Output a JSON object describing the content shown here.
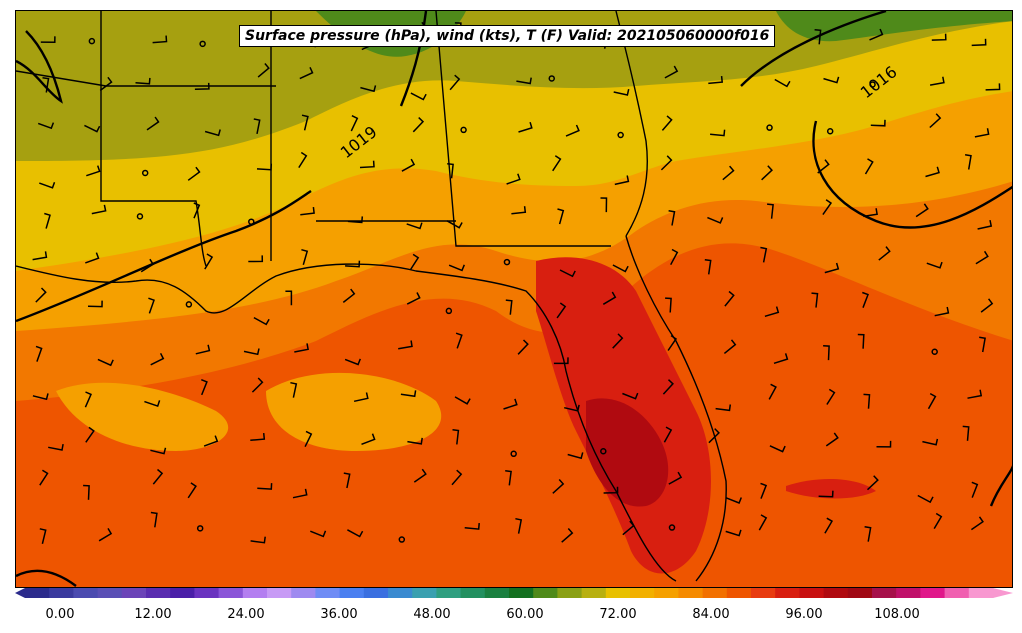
{
  "title": "Surface pressure (hPa), wind (kts), T (F) Valid: 202105060000f016",
  "isobar_labels": [
    "1019",
    "1016"
  ],
  "colorbar": {
    "tick_labels": [
      "0.00",
      "12.00",
      "24.00",
      "36.00",
      "48.00",
      "60.00",
      "72.00",
      "84.00",
      "96.00",
      "108.00"
    ],
    "colors": [
      "#2b2b8c",
      "#3a3a9e",
      "#4b4bb0",
      "#5a4fb5",
      "#6b44b8",
      "#5a2db0",
      "#4a1fa8",
      "#6a33c0",
      "#8a55d8",
      "#b37ef0",
      "#c79af5",
      "#9e8af0",
      "#6f8cf5",
      "#4a7ff0",
      "#3a6fe0",
      "#3a8ad0",
      "#3aa0b0",
      "#2f9f80",
      "#239060",
      "#1a8040",
      "#137020",
      "#4f8a1a",
      "#8aa015",
      "#b8b010",
      "#e8c000",
      "#f2b000",
      "#f5a000",
      "#f58a00",
      "#f27000",
      "#ee5500",
      "#e83c10",
      "#d81f10",
      "#c81010",
      "#b00a10",
      "#a00814",
      "#a6104a",
      "#c0106a",
      "#e0188a",
      "#f060b0",
      "#f898d0"
    ]
  },
  "field_colors": {
    "cold_green": "#4f8a1a",
    "olive": "#a6a010",
    "yellow": "#e8c000",
    "light_orange": "#f5a000",
    "orange": "#f27800",
    "deep_orange": "#ee5500",
    "red": "#d81f10",
    "dark_red": "#b00a10"
  }
}
